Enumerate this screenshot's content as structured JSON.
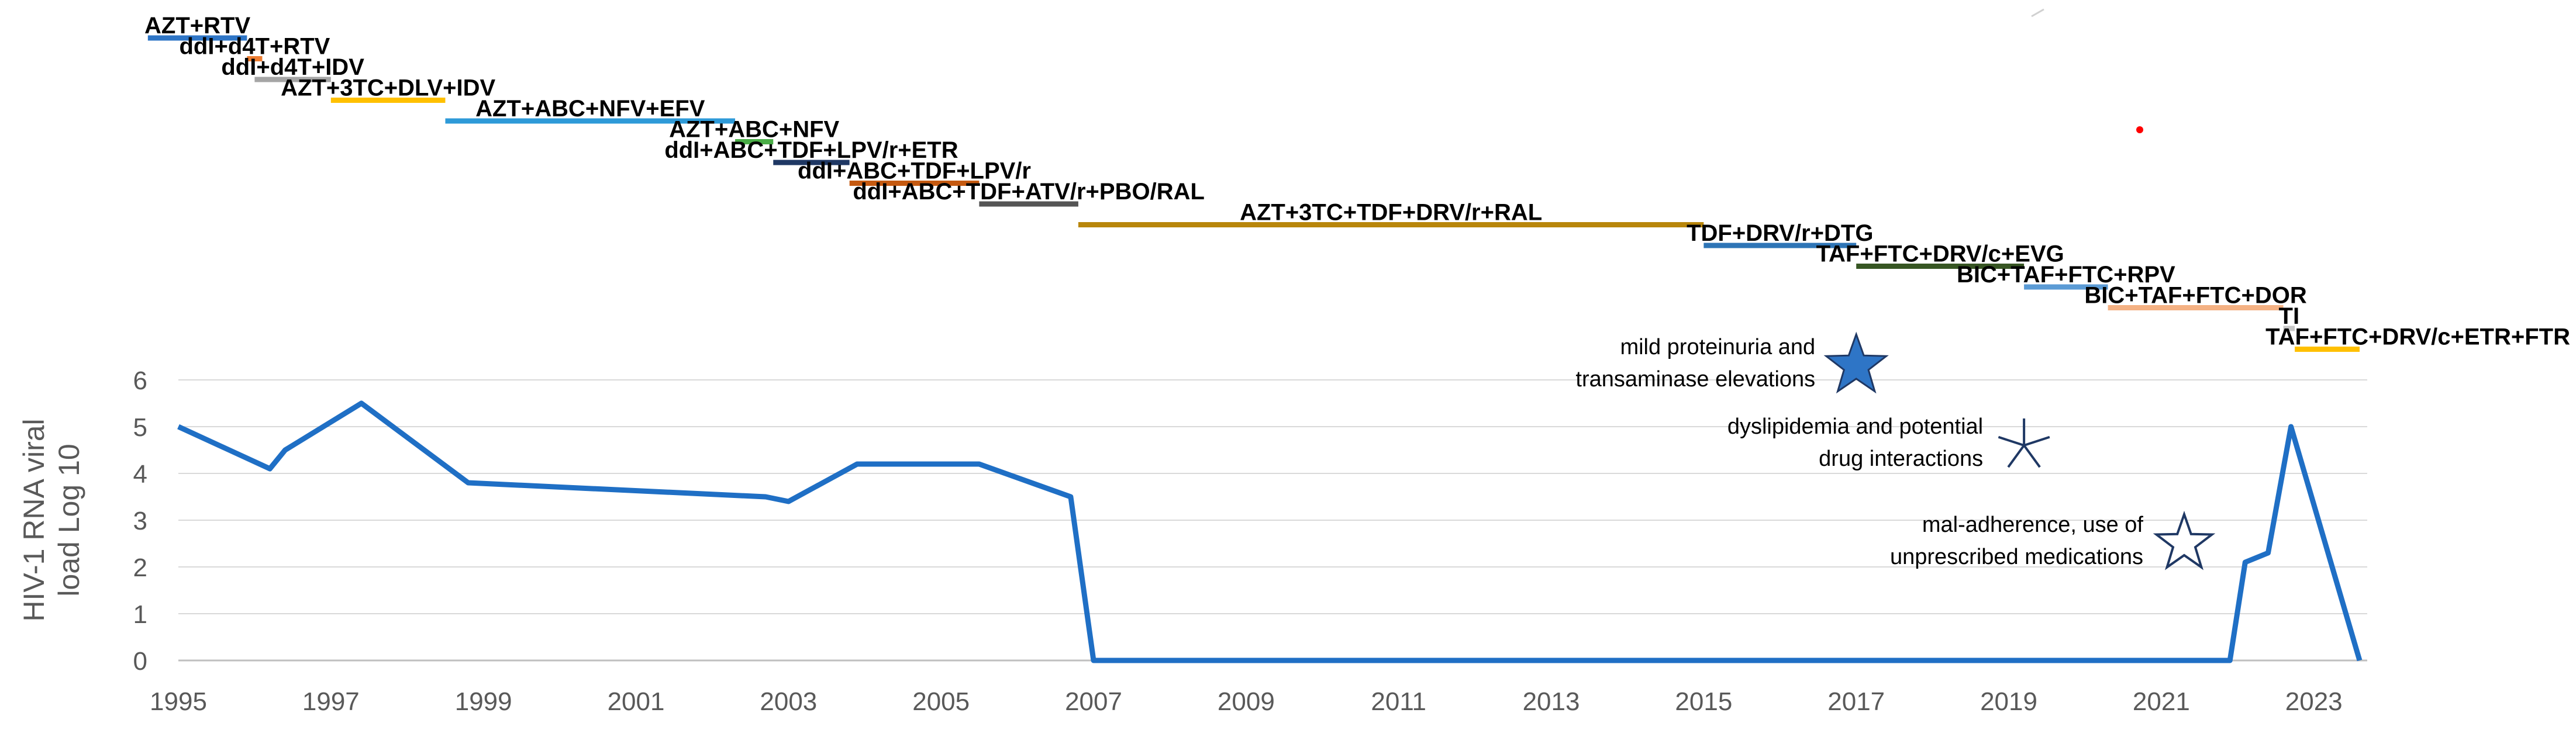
{
  "chart_data": {
    "type": "line",
    "title": "",
    "xlabel": "",
    "ylabel": "HIV-1 RNA viral load Log 10",
    "ylabel_lines": [
      "HIV-1 RNA viral",
      "load Log 10"
    ],
    "xlim": [
      1995,
      2023.7
    ],
    "ylim": [
      0,
      6
    ],
    "x_ticks": [
      "1995",
      "1997",
      "1999",
      "2001",
      "2003",
      "2005",
      "2007",
      "2009",
      "2011",
      "2013",
      "2015",
      "2017",
      "2019",
      "2021",
      "2023"
    ],
    "y_ticks": [
      "0",
      "1",
      "2",
      "3",
      "4",
      "5",
      "6"
    ],
    "grid": "horizontal",
    "series": [
      {
        "color": "#1f6fc5",
        "points": [
          [
            1995,
            5.0
          ],
          [
            1996.2,
            4.1
          ],
          [
            1996.4,
            4.5
          ],
          [
            1997.4,
            5.5
          ],
          [
            1998.8,
            3.8
          ],
          [
            2002.7,
            3.5
          ],
          [
            2003.0,
            3.4
          ],
          [
            2003.9,
            4.2
          ],
          [
            2005.5,
            4.2
          ],
          [
            2006.7,
            3.5
          ],
          [
            2007.0,
            0.0
          ],
          [
            2021.9,
            0.0
          ],
          [
            2022.1,
            2.1
          ],
          [
            2022.4,
            2.3
          ],
          [
            2022.7,
            5.0
          ],
          [
            2023.6,
            0.0
          ]
        ]
      }
    ],
    "regimens": [
      {
        "label": "AZT+RTV",
        "start": 1994.6,
        "end": 1995.9,
        "color": "#2e75c6"
      },
      {
        "label": "ddI+d4T+RTV",
        "start": 1995.9,
        "end": 1996.1,
        "color": "#ed7d31"
      },
      {
        "label": "ddI+d4T+IDV",
        "start": 1996.0,
        "end": 1997.0,
        "color": "#a5a5a5"
      },
      {
        "label": "AZT+3TC+DLV+IDV",
        "start": 1997.0,
        "end": 1998.5,
        "color": "#ffc000"
      },
      {
        "label": "AZT+ABC+NFV+EFV",
        "start": 1998.5,
        "end": 2002.3,
        "color": "#2e9ad8"
      },
      {
        "label": "AZT+ABC+NFV",
        "start": 2002.3,
        "end": 2002.8,
        "color": "#4aad47"
      },
      {
        "label": "ddI+ABC+TDF+LPV/r+ETR",
        "start": 2002.8,
        "end": 2003.8,
        "color": "#1f3864"
      },
      {
        "label": "ddI+ABC+TDF+LPV/r",
        "start": 2003.8,
        "end": 2005.5,
        "color": "#c55a11"
      },
      {
        "label": "ddI+ABC+TDF+ATV/r+PBO/RAL",
        "start": 2005.5,
        "end": 2006.8,
        "color": "#555555"
      },
      {
        "label": "AZT+3TC+TDF+DRV/r+RAL",
        "start": 2006.8,
        "end": 2015.0,
        "color": "#b8860b"
      },
      {
        "label": "TDF+DRV/r+DTG",
        "start": 2015.0,
        "end": 2017.0,
        "color": "#2e75b6"
      },
      {
        "label": "TAF+FTC+DRV/c+EVG",
        "start": 2017.0,
        "end": 2019.2,
        "color": "#375623"
      },
      {
        "label": "BIC+TAF+FTC+RPV",
        "start": 2019.2,
        "end": 2020.3,
        "color": "#5b9bd5"
      },
      {
        "label": "BIC+TAF+FTC+DOR",
        "start": 2020.3,
        "end": 2022.6,
        "color": "#f4b183"
      },
      {
        "label": "TI",
        "start": 2022.6,
        "end": 2022.75,
        "color": "#c8c8c8"
      },
      {
        "label": "TAF+FTC+DRV/c+ETR+FTR",
        "start": 2022.75,
        "end": 2023.6,
        "color": "#ffc000"
      }
    ],
    "annotations": [
      {
        "lines": [
          "mild proteinuria and",
          "transaminase elevations"
        ],
        "marker": "filled-star",
        "color": "#2e75c6",
        "x": 2017.0,
        "y": 6.3
      },
      {
        "lines": [
          "dyslipidemia and potential",
          "drug interactions"
        ],
        "marker": "asterisk",
        "color": "#1f3864",
        "x": 2019.2,
        "y": 4.6
      },
      {
        "lines": [
          "mal-adherence, use of",
          "unprescribed medications"
        ],
        "marker": "outline-star",
        "color": "#1f3864",
        "x": 2021.3,
        "y": 2.5
      }
    ]
  }
}
